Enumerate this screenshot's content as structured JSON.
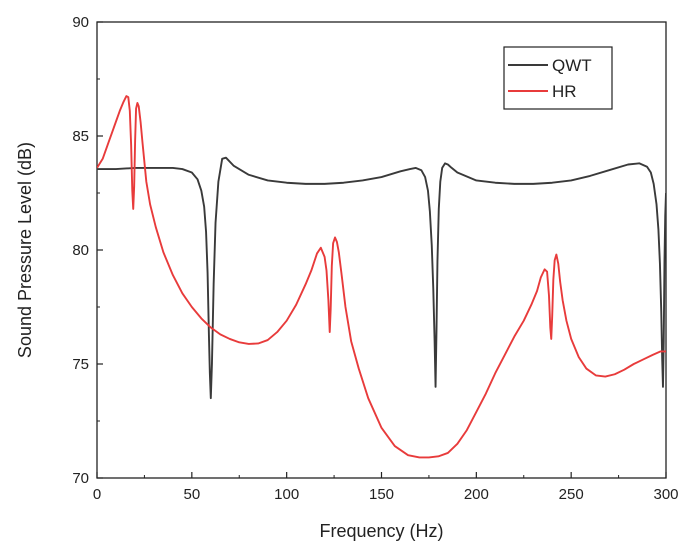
{
  "chart_data": {
    "type": "line",
    "title": "",
    "xlabel": "Frequency (Hz)",
    "ylabel": "Sound Pressure Level (dB)",
    "xlim": [
      0,
      300
    ],
    "ylim": [
      70,
      90
    ],
    "xticks": [
      0,
      50,
      100,
      150,
      200,
      250,
      300
    ],
    "yticks": [
      70,
      75,
      80,
      85,
      90
    ],
    "xtick_labels": [
      "0",
      "50",
      "100",
      "150",
      "200",
      "250",
      "300"
    ],
    "ytick_labels": [
      "70",
      "75",
      "80",
      "85",
      "90"
    ],
    "grid": false,
    "legend": "top-right",
    "series": [
      {
        "name": "QWT",
        "color": "#3a3a3a",
        "x": [
          0,
          10,
          20,
          30,
          40,
          45,
          50,
          53,
          55,
          56.5,
          57.5,
          58.3,
          59,
          59.5,
          60,
          60.6,
          61.5,
          62.5,
          64,
          66,
          68,
          72,
          80,
          90,
          100,
          110,
          120,
          130,
          140,
          150,
          160,
          165,
          168,
          171,
          173,
          174.5,
          175.5,
          176.5,
          177.3,
          178,
          178.5,
          179,
          179.5,
          180.2,
          181,
          182,
          183.5,
          185,
          187,
          190,
          200,
          210,
          220,
          230,
          240,
          250,
          260,
          270,
          280,
          286,
          290,
          292,
          293.5,
          295,
          296,
          296.8,
          297.5,
          298,
          298.4,
          298.8,
          299.2,
          299.6,
          300
        ],
        "values": [
          83.55,
          83.55,
          83.6,
          83.6,
          83.6,
          83.55,
          83.4,
          83.1,
          82.6,
          81.9,
          80.8,
          79.0,
          76.3,
          74.6,
          73.5,
          75.0,
          78.5,
          81.2,
          83.0,
          84.0,
          84.05,
          83.7,
          83.3,
          83.05,
          82.95,
          82.9,
          82.9,
          82.95,
          83.05,
          83.2,
          83.45,
          83.55,
          83.6,
          83.5,
          83.2,
          82.6,
          81.7,
          80.2,
          78.3,
          76.0,
          74.0,
          76.5,
          79.5,
          81.8,
          83.0,
          83.6,
          83.8,
          83.75,
          83.6,
          83.4,
          83.05,
          82.95,
          82.9,
          82.9,
          82.95,
          83.05,
          83.25,
          83.5,
          83.75,
          83.8,
          83.65,
          83.4,
          82.9,
          82.0,
          80.9,
          79.4,
          77.3,
          75.2,
          74.0,
          76.0,
          79.5,
          81.5,
          82.5
        ]
      },
      {
        "name": "HR",
        "color": "#e83b3b",
        "x": [
          0,
          3,
          6,
          9,
          12,
          14,
          15.5,
          16.5,
          17.3,
          18,
          18.6,
          19.1,
          19.6,
          20.1,
          20.6,
          21.3,
          22,
          23,
          24,
          26,
          28,
          31,
          35,
          40,
          45,
          50,
          55,
          60,
          65,
          70,
          75,
          80,
          85,
          90,
          95,
          100,
          105,
          110,
          113,
          116,
          118,
          120,
          121,
          122,
          122.7,
          123.2,
          123.8,
          124.5,
          125.5,
          126.5,
          127.5,
          129,
          131,
          134,
          138,
          143,
          150,
          157,
          164,
          170,
          175,
          180,
          185,
          190,
          195,
          200,
          205,
          210,
          215,
          220,
          225,
          229,
          232,
          234,
          236,
          237.3,
          238.3,
          239,
          239.5,
          240,
          240.6,
          241.3,
          242.2,
          243.2,
          244.2,
          245.5,
          247.5,
          250,
          254,
          258,
          263,
          268,
          273,
          278,
          283,
          288,
          293,
          297,
          300
        ],
        "values": [
          83.6,
          84.0,
          84.7,
          85.4,
          86.1,
          86.5,
          86.75,
          86.7,
          86.1,
          84.6,
          82.6,
          81.8,
          82.8,
          84.8,
          86.2,
          86.45,
          86.3,
          85.6,
          84.7,
          83.0,
          82.0,
          81.0,
          79.9,
          78.9,
          78.1,
          77.5,
          77.0,
          76.6,
          76.3,
          76.1,
          75.95,
          75.88,
          75.9,
          76.05,
          76.4,
          76.9,
          77.6,
          78.5,
          79.1,
          79.85,
          80.1,
          79.7,
          79.1,
          77.8,
          76.4,
          77.4,
          79.3,
          80.3,
          80.55,
          80.35,
          79.9,
          78.9,
          77.5,
          76.0,
          74.8,
          73.5,
          72.2,
          71.4,
          71.0,
          70.9,
          70.9,
          70.95,
          71.1,
          71.5,
          72.1,
          72.9,
          73.7,
          74.6,
          75.4,
          76.2,
          76.9,
          77.6,
          78.2,
          78.8,
          79.15,
          79.05,
          78.0,
          76.6,
          76.1,
          77.1,
          78.7,
          79.55,
          79.8,
          79.4,
          78.6,
          77.8,
          76.9,
          76.1,
          75.3,
          74.8,
          74.5,
          74.45,
          74.55,
          74.75,
          75.0,
          75.2,
          75.4,
          75.55,
          75.55
        ]
      }
    ]
  }
}
